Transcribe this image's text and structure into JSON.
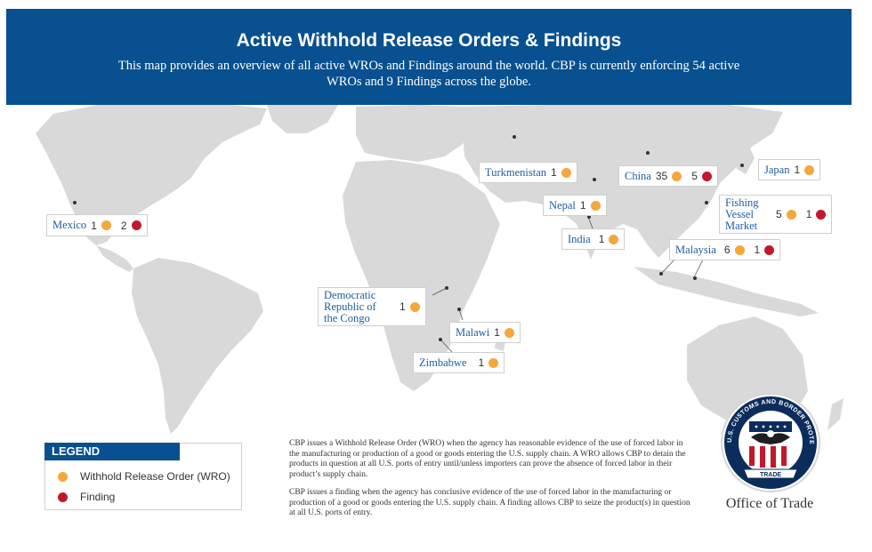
{
  "header": {
    "title": "Active Withhold Release Orders & Findings",
    "subtitle": "This map provides an overview of all active WROs and Findings around the world. CBP is currently enforcing 54 active WROs and 9 Findings across the globe."
  },
  "colors": {
    "header_bg": "#08508f",
    "land": "#d9d9d9",
    "wro": "#f4a73b",
    "finding": "#c1182b"
  },
  "markers": [
    {
      "name": "Mexico",
      "wro": "1",
      "finding": "2"
    },
    {
      "name": "Turkmenistan",
      "wro": "1"
    },
    {
      "name": "China",
      "wro": "35",
      "finding": "5"
    },
    {
      "name": "Japan",
      "wro": "1"
    },
    {
      "name": "Nepal",
      "wro": "1"
    },
    {
      "name": "Fishing Vessel Market",
      "wro": "5",
      "finding": "1"
    },
    {
      "name": "India",
      "wro": "1"
    },
    {
      "name": "Malaysia",
      "wro": "6",
      "finding": "1"
    },
    {
      "name": "Democratic Republic of the Congo",
      "wro": "1"
    },
    {
      "name": "Malawi",
      "wro": "1"
    },
    {
      "name": "Zimbabwe",
      "wro": "1"
    }
  ],
  "legend": {
    "title": "LEGEND",
    "wro_label": "Withhold Release Order (WRO)",
    "finding_label": "Finding"
  },
  "description": {
    "p1": "CBP issues a Withhold Release Order (WRO) when the agency has reasonable evidence of the use of forced labor in the manufacturing or production of a good or goods entering the U.S. supply chain. A WRO allows CBP to detain the products in question at all U.S. ports of entry until/unless importers can prove the absence of forced labor in their product’s supply chain.",
    "p2": "CBP issues a finding when the agency has conclusive evidence of the use of forced labor in the manufacturing or production of a good or goods entering the U.S. supply chain. A finding allows CBP to seize the product(s) in question at all U.S. ports of entry."
  },
  "seal": {
    "ring_text": "U.S. CUSTOMS AND BORDER PROTECTION",
    "banner": "TRADE"
  },
  "footer": {
    "office": "Office of Trade"
  }
}
